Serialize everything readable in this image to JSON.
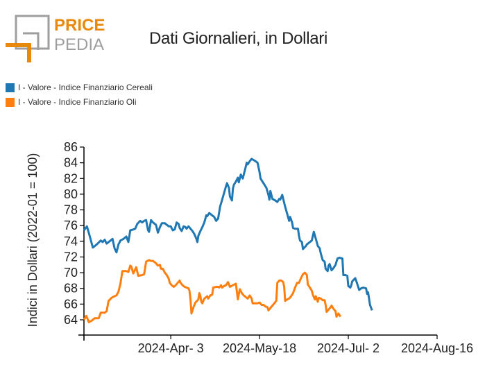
{
  "logo": {
    "line1": "PRICE",
    "line2": "PEDIA",
    "gray": "#9e9e9e",
    "orange": "#e8890c"
  },
  "chart_data": {
    "type": "line",
    "title": "Dati Giornalieri, in Dollari",
    "ylabel": "Indici in Dollari (2022-01 = 100)",
    "xlabel": "",
    "ylim": [
      62,
      86
    ],
    "yticks": [
      64,
      66,
      68,
      70,
      72,
      74,
      76,
      78,
      80,
      82,
      84,
      86
    ],
    "xticks": [
      {
        "label": "2024-Apr- 3",
        "day": 44
      },
      {
        "label": "2024-May-18",
        "day": 89
      },
      {
        "label": "2024-Jul- 2",
        "day": 134
      },
      {
        "label": "2024-Aug-16",
        "day": 179
      }
    ],
    "xlim_days": [
      0,
      179
    ],
    "legend_position": "top-left",
    "series": [
      {
        "name": "I - Valore - Indice Finanziario Cereali",
        "color": "#1f77b4",
        "points": [
          [
            0,
            75.4
          ],
          [
            1.5,
            75.9
          ],
          [
            3,
            74.6
          ],
          [
            4.5,
            73.2
          ],
          [
            6.5,
            73.6
          ],
          [
            8.5,
            74.1
          ],
          [
            9.5,
            73.9
          ],
          [
            10.5,
            74.2
          ],
          [
            11.5,
            73.7
          ],
          [
            13,
            74.0
          ],
          [
            14.5,
            74.3
          ],
          [
            15.5,
            73.1
          ],
          [
            16.5,
            72.6
          ],
          [
            17.5,
            73.6
          ],
          [
            18.5,
            74.1
          ],
          [
            20,
            74.3
          ],
          [
            21.5,
            74.6
          ],
          [
            22.5,
            73.9
          ],
          [
            23.5,
            75.4
          ],
          [
            25,
            75.5
          ],
          [
            26,
            75.6
          ],
          [
            27,
            76.2
          ],
          [
            28.5,
            76.6
          ],
          [
            29.5,
            76.4
          ],
          [
            30.5,
            76.6
          ],
          [
            31.5,
            76.7
          ],
          [
            32.5,
            75.4
          ],
          [
            33,
            75.2
          ],
          [
            34,
            76.7
          ],
          [
            35,
            76.4
          ],
          [
            36.5,
            76.1
          ],
          [
            37.5,
            75.1
          ],
          [
            38.5,
            75.8
          ],
          [
            39.5,
            76.3
          ],
          [
            41,
            76.3
          ],
          [
            42,
            76.1
          ],
          [
            43,
            75.9
          ],
          [
            44,
            75.9
          ],
          [
            45,
            75.4
          ],
          [
            46,
            75.5
          ],
          [
            47,
            76.4
          ],
          [
            48,
            76.2
          ],
          [
            48.5,
            75.7
          ],
          [
            49.5,
            75.3
          ],
          [
            50.5,
            75.9
          ],
          [
            51.5,
            75.8
          ],
          [
            52,
            75.6
          ],
          [
            53,
            75.9
          ],
          [
            54,
            75.6
          ],
          [
            55,
            75.3
          ],
          [
            56,
            74.9
          ],
          [
            57,
            74.3
          ],
          [
            57.5,
            73.9
          ],
          [
            58,
            74.7
          ],
          [
            59,
            75.3
          ],
          [
            60,
            75.8
          ],
          [
            61,
            76.4
          ],
          [
            62,
            77.3
          ],
          [
            62.5,
            77.2
          ],
          [
            63.5,
            77.6
          ],
          [
            65,
            77.3
          ],
          [
            66,
            77.1
          ],
          [
            67,
            76.6
          ],
          [
            68,
            76.9
          ],
          [
            69,
            78.4
          ],
          [
            70.5,
            79.7
          ],
          [
            72,
            81.0
          ],
          [
            72.5,
            81.4
          ],
          [
            73.5,
            80.8
          ],
          [
            74,
            79.7
          ],
          [
            75,
            79.2
          ],
          [
            75.5,
            80.7
          ],
          [
            76,
            81.2
          ],
          [
            77,
            81.6
          ],
          [
            78,
            82.1
          ],
          [
            78.5,
            81.5
          ],
          [
            79.5,
            82.5
          ],
          [
            80.5,
            82.0
          ],
          [
            81.5,
            83.0
          ],
          [
            82.5,
            84.0
          ],
          [
            83,
            83.8
          ],
          [
            84,
            84.2
          ],
          [
            85,
            84.5
          ],
          [
            87,
            84.2
          ],
          [
            88,
            84.0
          ],
          [
            89,
            82.8
          ],
          [
            89.5,
            82.0
          ],
          [
            90.5,
            81.6
          ],
          [
            91.5,
            81.2
          ],
          [
            92.5,
            80.8
          ],
          [
            93.5,
            79.9
          ],
          [
            94,
            79.3
          ],
          [
            94.5,
            80.4
          ],
          [
            95.5,
            79.4
          ],
          [
            97,
            79.2
          ],
          [
            98,
            79.0
          ],
          [
            99,
            79.4
          ],
          [
            99.5,
            79.3
          ],
          [
            100.5,
            79.9
          ],
          [
            101,
            79.4
          ],
          [
            102,
            78.4
          ],
          [
            103,
            77.5
          ],
          [
            104,
            76.6
          ],
          [
            104.5,
            77.1
          ],
          [
            105.5,
            76.4
          ],
          [
            106,
            75.7
          ],
          [
            107,
            75.6
          ],
          [
            108.5,
            75.6
          ],
          [
            109,
            74.7
          ],
          [
            109.5,
            74.1
          ],
          [
            110.5,
            73.9
          ],
          [
            111,
            73.0
          ],
          [
            112.5,
            73.4
          ],
          [
            113,
            73.6
          ],
          [
            114.5,
            73.9
          ],
          [
            115.5,
            74.1
          ],
          [
            116.5,
            75.2
          ],
          [
            118,
            73.9
          ],
          [
            118.5,
            73.4
          ],
          [
            119.5,
            73.1
          ],
          [
            120,
            72.5
          ],
          [
            121,
            71.6
          ],
          [
            122,
            71.4
          ],
          [
            122.5,
            70.5
          ],
          [
            123.5,
            70.2
          ],
          [
            124,
            70.9
          ],
          [
            124.5,
            71.1
          ],
          [
            125.5,
            70.3
          ],
          [
            126.5,
            70.6
          ],
          [
            127.5,
            71.0
          ],
          [
            128.5,
            71.8
          ],
          [
            129.5,
            71.9
          ],
          [
            131,
            71.8
          ],
          [
            131.5,
            69.7
          ],
          [
            132.5,
            69.7
          ],
          [
            133.5,
            69.6
          ],
          [
            134,
            68.3
          ],
          [
            135,
            68.1
          ],
          [
            135.5,
            68.4
          ],
          [
            136,
            68.9
          ],
          [
            137.5,
            69.3
          ],
          [
            138.5,
            68.6
          ],
          [
            139.5,
            67.8
          ],
          [
            140.5,
            68.0
          ],
          [
            141.5,
            68.1
          ],
          [
            143,
            68.0
          ],
          [
            143.5,
            67.3
          ],
          [
            144,
            67.5
          ],
          [
            145,
            65.9
          ],
          [
            146,
            65.2
          ]
        ]
      },
      {
        "name": "I - Valore - Indice Finanziario Oli",
        "color": "#ff7f0e",
        "points": [
          [
            0,
            64.0
          ],
          [
            1.2,
            64.5
          ],
          [
            2.5,
            63.7
          ],
          [
            4,
            63.9
          ],
          [
            5.5,
            64.2
          ],
          [
            7.5,
            64.2
          ],
          [
            8.5,
            64.9
          ],
          [
            10.5,
            64.9
          ],
          [
            11.5,
            65.1
          ],
          [
            12.5,
            66.4
          ],
          [
            14,
            66.8
          ],
          [
            15.5,
            67.0
          ],
          [
            16.5,
            67.1
          ],
          [
            17.5,
            67.6
          ],
          [
            18.5,
            68.6
          ],
          [
            19.5,
            70.2
          ],
          [
            21.5,
            70.2
          ],
          [
            22.5,
            70.1
          ],
          [
            23.5,
            70.9
          ],
          [
            24,
            70.8
          ],
          [
            25,
            69.9
          ],
          [
            26.5,
            70.7
          ],
          [
            27.5,
            69.6
          ],
          [
            29.5,
            69.7
          ],
          [
            30.5,
            69.8
          ],
          [
            31.5,
            71.4
          ],
          [
            33,
            71.6
          ],
          [
            34,
            71.5
          ],
          [
            35,
            71.5
          ],
          [
            36.5,
            71.2
          ],
          [
            37.5,
            70.9
          ],
          [
            38.5,
            71.0
          ],
          [
            39,
            70.5
          ],
          [
            40,
            70.5
          ],
          [
            41,
            70.0
          ],
          [
            42,
            69.7
          ],
          [
            43,
            69.2
          ],
          [
            43.5,
            68.7
          ],
          [
            44.5,
            68.4
          ],
          [
            45.5,
            68.2
          ],
          [
            46.5,
            68.4
          ],
          [
            47.5,
            68.7
          ],
          [
            48.5,
            69.0
          ],
          [
            49,
            68.7
          ],
          [
            50,
            68.4
          ],
          [
            51,
            68.2
          ],
          [
            53,
            68.0
          ],
          [
            53.5,
            67.7
          ],
          [
            54,
            66.5
          ],
          [
            54.5,
            64.8
          ],
          [
            55.5,
            65.6
          ],
          [
            56.5,
            66.2
          ],
          [
            58,
            66.6
          ],
          [
            58.5,
            67.4
          ],
          [
            59,
            67.0
          ],
          [
            59.5,
            66.3
          ],
          [
            60,
            66.1
          ],
          [
            61,
            66.7
          ],
          [
            62.5,
            67.0
          ],
          [
            63,
            66.7
          ],
          [
            64,
            67.1
          ],
          [
            65,
            67.2
          ],
          [
            65.5,
            68.1
          ],
          [
            67,
            68.2
          ],
          [
            68,
            68.2
          ],
          [
            68.5,
            68.1
          ],
          [
            69.5,
            68.4
          ],
          [
            70,
            68.1
          ],
          [
            71,
            68.3
          ],
          [
            72,
            68.4
          ],
          [
            73,
            68.8
          ],
          [
            74,
            68.2
          ],
          [
            75.5,
            68.4
          ],
          [
            77,
            68.6
          ],
          [
            77.5,
            67.6
          ],
          [
            78,
            66.6
          ],
          [
            79,
            67.9
          ],
          [
            80,
            67.4
          ],
          [
            81,
            67.1
          ],
          [
            82,
            66.9
          ],
          [
            83,
            66.7
          ],
          [
            84,
            67.1
          ],
          [
            85,
            66.7
          ],
          [
            85.5,
            66.1
          ],
          [
            86.5,
            66.1
          ],
          [
            88,
            66.1
          ],
          [
            89,
            66.2
          ],
          [
            90,
            65.9
          ],
          [
            91,
            65.9
          ],
          [
            92,
            65.7
          ],
          [
            93,
            65.6
          ],
          [
            93.5,
            65.2
          ],
          [
            94.5,
            65.5
          ],
          [
            95.5,
            65.8
          ],
          [
            96.5,
            66.1
          ],
          [
            97.5,
            66.4
          ],
          [
            98,
            68.7
          ],
          [
            99,
            69.0
          ],
          [
            100,
            69.0
          ],
          [
            101,
            68.8
          ],
          [
            101.5,
            68.2
          ],
          [
            102,
            66.4
          ],
          [
            103,
            66.6
          ],
          [
            104,
            66.7
          ],
          [
            105,
            67.0
          ],
          [
            106,
            67.4
          ],
          [
            107,
            68.1
          ],
          [
            108,
            68.7
          ],
          [
            109,
            68.7
          ],
          [
            110,
            69.3
          ],
          [
            111,
            69.8
          ],
          [
            112,
            70.0
          ],
          [
            113,
            69.7
          ],
          [
            113.5,
            68.5
          ],
          [
            114.5,
            68.1
          ],
          [
            115.5,
            67.7
          ],
          [
            116,
            67.2
          ],
          [
            116.5,
            66.9
          ],
          [
            117,
            66.6
          ],
          [
            117.5,
            67.0
          ],
          [
            118.5,
            66.3
          ],
          [
            119,
            66.8
          ],
          [
            120,
            66.7
          ],
          [
            121,
            66.5
          ],
          [
            122,
            66.5
          ],
          [
            122.5,
            65.9
          ],
          [
            123,
            65.0
          ],
          [
            124,
            65.3
          ],
          [
            125,
            65.6
          ],
          [
            125.5,
            65.8
          ],
          [
            126.5,
            65.4
          ],
          [
            127.5,
            65.1
          ],
          [
            128,
            64.4
          ],
          [
            129,
            64.8
          ],
          [
            129.5,
            64.6
          ],
          [
            130,
            64.4
          ]
        ]
      }
    ]
  }
}
